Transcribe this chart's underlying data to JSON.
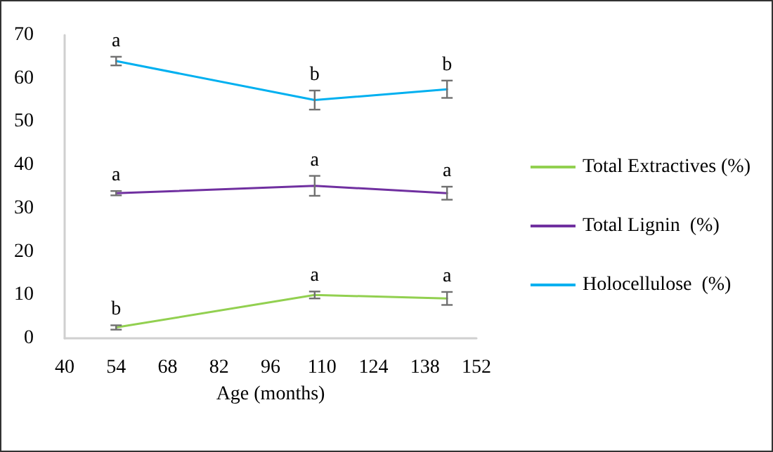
{
  "chart_data": {
    "type": "line",
    "xlabel": "Age (months)",
    "x": [
      54,
      108,
      144
    ],
    "xlim": [
      40,
      152
    ],
    "xticks": [
      40,
      54,
      68,
      82,
      96,
      110,
      124,
      138,
      152
    ],
    "ylim": [
      0,
      70
    ],
    "yticks": [
      0,
      10,
      20,
      30,
      40,
      50,
      60,
      70
    ],
    "grid": false,
    "legend": "right",
    "marker": "none",
    "line_style": "solid",
    "series": [
      {
        "name": "Total Extractives (%)",
        "color": "#92d050",
        "values": [
          2.5,
          10,
          9.2
        ],
        "errors": [
          0.5,
          0.8,
          1.5
        ]
      },
      {
        "name": "Total Lignin  (%)",
        "color": "#7030a0",
        "values": [
          33.5,
          35.2,
          33.5
        ],
        "errors": [
          0.5,
          2.3,
          1.5
        ]
      },
      {
        "name": "Holocellulose  (%)",
        "color": "#00b0f0",
        "values": [
          64,
          55,
          57.5
        ],
        "errors": [
          1,
          2.2,
          2
        ]
      }
    ],
    "annotations": [
      {
        "text": "b",
        "x": 54,
        "y": 2.5
      },
      {
        "text": "a",
        "x": 108,
        "y": 10
      },
      {
        "text": "a",
        "x": 144,
        "y": 9.2
      },
      {
        "text": "a",
        "x": 54,
        "y": 33.5
      },
      {
        "text": "a",
        "x": 108,
        "y": 35.2
      },
      {
        "text": "a",
        "x": 144,
        "y": 33.5
      },
      {
        "text": "a",
        "x": 54,
        "y": 64
      },
      {
        "text": "b",
        "x": 108,
        "y": 55
      },
      {
        "text": "b",
        "x": 144,
        "y": 57.5
      }
    ]
  }
}
